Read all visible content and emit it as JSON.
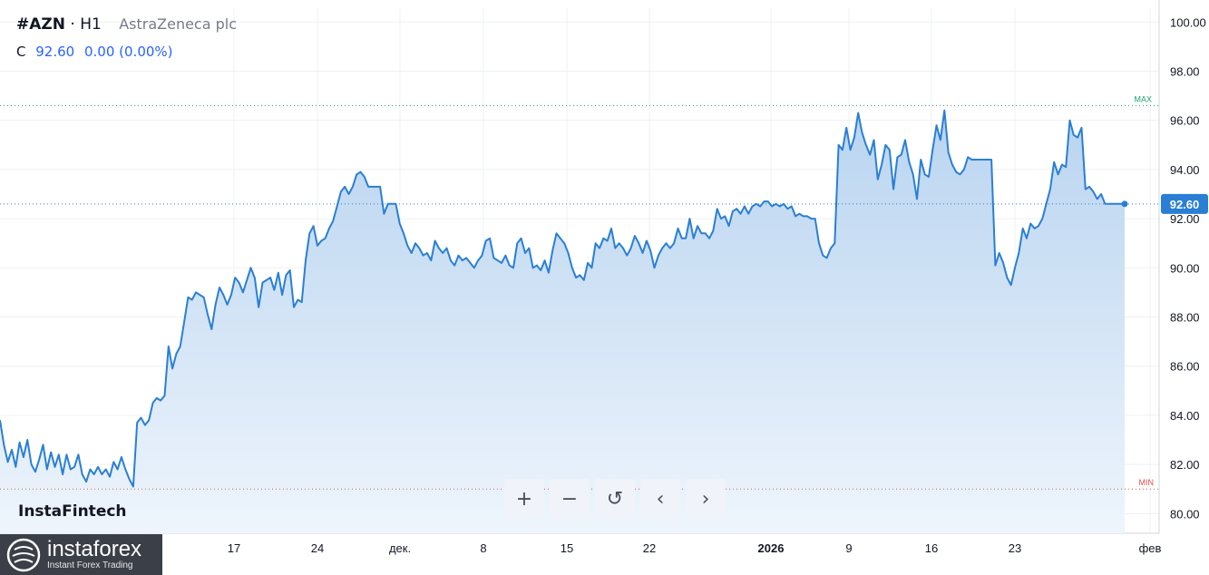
{
  "header": {
    "symbol": "#AZN",
    "sep": "·",
    "interval": "H1",
    "company": "AstraZeneca plc"
  },
  "ohlc": {
    "label": "C",
    "close": "92.60",
    "change": "0.00 (0.00%)"
  },
  "brand": "InstaFintech",
  "logo": {
    "name": "instaforex",
    "tagline": "Instant Forex Trading"
  },
  "controls": [
    {
      "name": "zoom-in-button",
      "glyph": "+"
    },
    {
      "name": "zoom-out-button",
      "glyph": "−"
    },
    {
      "name": "reset-button",
      "glyph": "↺"
    },
    {
      "name": "scroll-left-button",
      "glyph": "‹"
    },
    {
      "name": "scroll-right-button",
      "glyph": "›"
    }
  ],
  "colors": {
    "line": "#2a7fd4",
    "fill_top": "#b9d4f0",
    "fill_bottom": "#eef5fc",
    "max": "#22a06b",
    "min": "#e0524f",
    "badge": "#2a7fd4"
  },
  "chart_data": {
    "type": "area",
    "y_axis": {
      "ticks": [
        "100.00",
        "98.00",
        "96.00",
        "94.00",
        "92.00",
        "90.00",
        "88.00",
        "86.00",
        "84.00",
        "82.00",
        "80.00"
      ],
      "range": [
        79.2,
        100.6
      ],
      "position": "right"
    },
    "x_axis": {
      "ticks": [
        "17",
        "24",
        "дек.",
        "8",
        "15",
        "22",
        "2026",
        "9",
        "16",
        "23",
        "фев"
      ],
      "bold_ticks": [
        "2026"
      ]
    },
    "last_price": "92.60",
    "max_label": "MAX",
    "max_value": 96.6,
    "min_label": "MIN",
    "min_value": 81.0,
    "grid": true,
    "series": [
      {
        "values": [
          83.8,
          82.8,
          82.1,
          82.6,
          81.9,
          82.9,
          82.3,
          83.0,
          82.0,
          81.7,
          82.2,
          82.8,
          81.8,
          82.5,
          81.9,
          82.4,
          81.6,
          82.4,
          81.8,
          81.9,
          82.4,
          81.6,
          81.3,
          81.8,
          81.6,
          81.9,
          81.6,
          81.8,
          81.5,
          82.1,
          81.8,
          82.3,
          81.8,
          81.4,
          81.1,
          83.7,
          83.9,
          83.6,
          83.8,
          84.5,
          84.7,
          84.6,
          84.8,
          86.8,
          85.9,
          86.5,
          86.8,
          87.8,
          88.8,
          88.7,
          89.0,
          88.9,
          88.8,
          88.1,
          87.5,
          88.5,
          89.2,
          88.9,
          88.5,
          88.9,
          89.6,
          89.4,
          89.0,
          89.5,
          90.0,
          89.6,
          88.4,
          89.4,
          89.5,
          89.6,
          89.1,
          89.8,
          88.9,
          89.7,
          89.9,
          88.4,
          88.7,
          88.6,
          90.3,
          91.4,
          91.7,
          90.9,
          91.1,
          91.2,
          91.6,
          91.9,
          92.5,
          93.1,
          93.3,
          93.0,
          93.3,
          93.8,
          93.9,
          93.7,
          93.3,
          93.3,
          93.3,
          93.3,
          92.2,
          92.6,
          92.6,
          92.6,
          91.8,
          91.4,
          90.9,
          90.6,
          91.0,
          90.8,
          90.5,
          90.6,
          90.3,
          91.1,
          90.8,
          90.6,
          90.8,
          90.3,
          90.1,
          90.5,
          90.3,
          90.4,
          90.2,
          90.0,
          90.3,
          90.5,
          91.1,
          91.2,
          90.4,
          90.3,
          90.2,
          90.5,
          90.1,
          90.0,
          91.0,
          91.2,
          90.6,
          90.8,
          90.0,
          90.1,
          89.9,
          90.3,
          89.8,
          90.7,
          91.4,
          91.2,
          91.0,
          90.6,
          90.0,
          89.6,
          89.7,
          89.5,
          90.2,
          90.0,
          91.0,
          90.8,
          91.2,
          91.1,
          91.6,
          90.8,
          91.0,
          90.8,
          90.5,
          90.8,
          91.3,
          91.0,
          90.6,
          91.1,
          90.7,
          90.0,
          90.5,
          90.8,
          91.0,
          90.8,
          91.0,
          91.6,
          91.2,
          91.2,
          92.0,
          91.2,
          91.7,
          91.4,
          91.4,
          91.2,
          91.5,
          92.4,
          92.0,
          92.1,
          91.7,
          92.3,
          92.4,
          92.2,
          92.5,
          92.2,
          92.5,
          92.6,
          92.5,
          92.7,
          92.7,
          92.5,
          92.6,
          92.5,
          92.6,
          92.4,
          92.5,
          92.1,
          92.2,
          92.1,
          92.1,
          92.0,
          92.0,
          91.0,
          90.5,
          90.4,
          90.8,
          91.0,
          95.0,
          94.8,
          95.7,
          94.8,
          95.3,
          96.3,
          95.5,
          95.0,
          94.6,
          95.2,
          93.6,
          94.2,
          95.0,
          94.8,
          93.2,
          94.5,
          94.6,
          95.2,
          94.3,
          93.8,
          92.8,
          94.4,
          93.8,
          93.7,
          94.8,
          95.8,
          95.2,
          96.4,
          94.7,
          94.2,
          93.9,
          93.8,
          94.0,
          94.5,
          94.4,
          94.4,
          94.4,
          94.4,
          94.4,
          94.4,
          90.1,
          90.6,
          90.2,
          89.6,
          89.3,
          90.0,
          90.6,
          91.6,
          91.2,
          91.8,
          91.6,
          91.7,
          92.0,
          92.6,
          93.2,
          94.3,
          93.8,
          94.2,
          94.1,
          96.0,
          95.4,
          95.3,
          95.7,
          93.2,
          93.3,
          93.1,
          92.8,
          93.0,
          92.6,
          92.6,
          92.6,
          92.6,
          92.6,
          92.6
        ]
      }
    ]
  }
}
